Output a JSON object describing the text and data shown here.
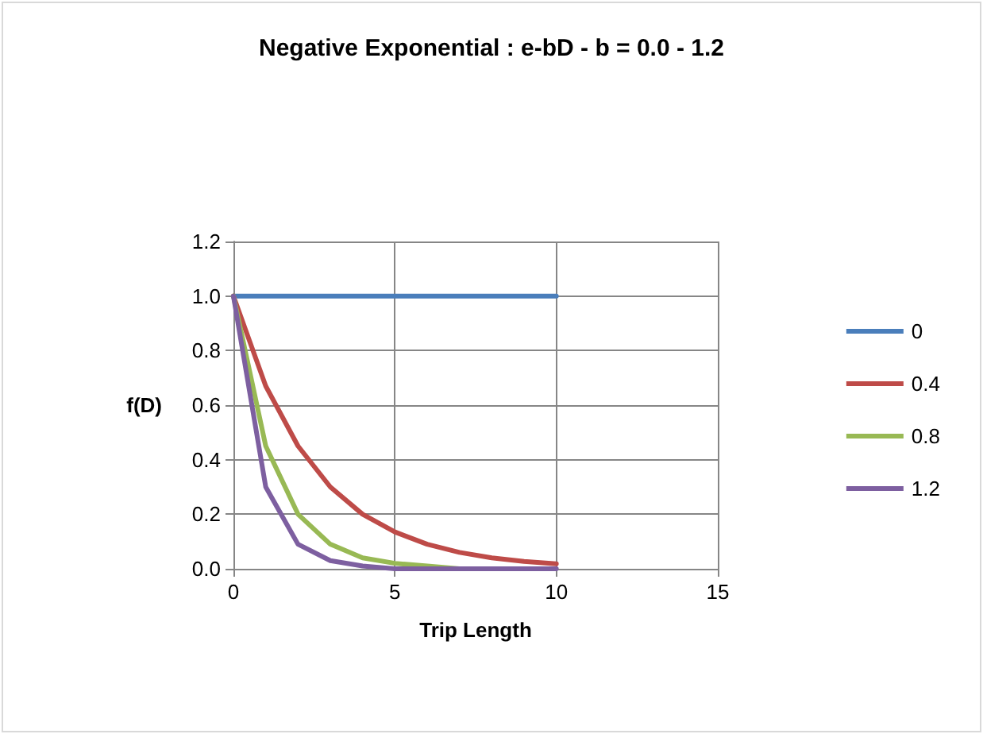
{
  "chart_data": {
    "type": "line",
    "title": "Negative Exponential : e-bD - b = 0.0 - 1.2",
    "xlabel": "Trip Length",
    "ylabel": "f(D)",
    "x": [
      0,
      1,
      2,
      3,
      4,
      5,
      6,
      7,
      8,
      9,
      10
    ],
    "xlim": [
      0,
      15
    ],
    "xticks": [
      0,
      5,
      10,
      15
    ],
    "ylim": [
      0,
      1.2
    ],
    "yticks": [
      {
        "value": 0,
        "label": "0.0"
      },
      {
        "value": 0.2,
        "label": "0.2"
      },
      {
        "value": 0.4,
        "label": "0.4"
      },
      {
        "value": 0.6,
        "label": "0.6"
      },
      {
        "value": 0.8,
        "label": "0.8"
      },
      {
        "value": 1,
        "label": "1.0"
      },
      {
        "value": 1.2,
        "label": "1.2"
      }
    ],
    "grid": true,
    "legend": "right",
    "marker": "none",
    "line_style": "solid",
    "series": [
      {
        "name": "0",
        "color": "#4a7ebb",
        "values": [
          1,
          1,
          1,
          1,
          1,
          1,
          1,
          1,
          1,
          1,
          1
        ]
      },
      {
        "name": "0.4",
        "color": "#be4b48",
        "values": [
          1,
          0.67,
          0.45,
          0.3,
          0.2,
          0.135,
          0.09,
          0.06,
          0.04,
          0.027,
          0.018
        ]
      },
      {
        "name": "0.8",
        "color": "#98b954",
        "values": [
          1,
          0.45,
          0.2,
          0.09,
          0.04,
          0.02,
          0.01,
          0,
          0,
          null,
          null
        ]
      },
      {
        "name": "1.2",
        "color": "#7d5fa0",
        "values": [
          1,
          0.3,
          0.09,
          0.03,
          0.01,
          0,
          0,
          0,
          0,
          0,
          0
        ]
      }
    ]
  }
}
